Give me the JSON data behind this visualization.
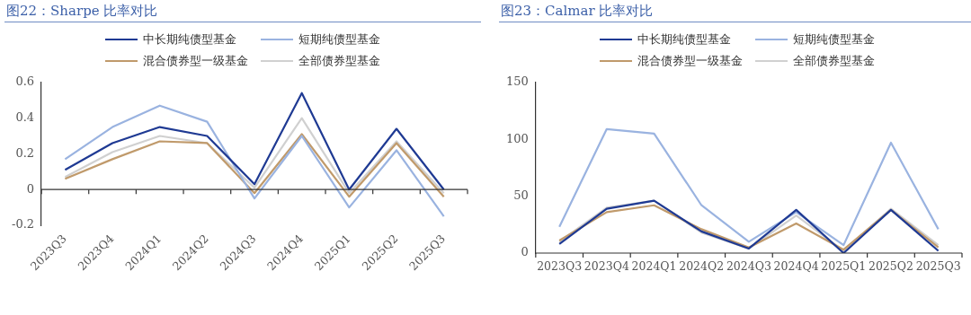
{
  "chart_data": [
    {
      "type": "line",
      "title": "图22：Sharpe 比率对比",
      "categories": [
        "2023Q3",
        "2023Q4",
        "2024Q1",
        "2024Q2",
        "2024Q3",
        "2024Q4",
        "2025Q1",
        "2025Q2",
        "2025Q3"
      ],
      "ylim": [
        -0.2,
        0.6
      ],
      "yticks": [
        {
          "value": -0.2,
          "label": "-0.2"
        },
        {
          "value": 0,
          "label": "0"
        },
        {
          "value": 0.2,
          "label": "0.2"
        },
        {
          "value": 0.4,
          "label": "0.4"
        },
        {
          "value": 0.6,
          "label": "0.6"
        }
      ],
      "grid": false,
      "ref_lines": [
        {
          "axis": "y",
          "value": 0,
          "color": "#333333"
        }
      ],
      "legend": "top",
      "marker": "none",
      "line_style": "solid",
      "series": [
        {
          "name": "中长期纯债型基金",
          "color": "#1f3a93",
          "values": [
            0.11,
            0.26,
            0.35,
            0.3,
            0.03,
            0.54,
            0.0,
            0.34,
            0.0
          ]
        },
        {
          "name": "短期纯债型基金",
          "color": "#9ab3e0",
          "values": [
            0.17,
            0.35,
            0.47,
            0.38,
            -0.05,
            0.3,
            -0.1,
            0.22,
            -0.15
          ]
        },
        {
          "name": "混合债券型一级基金",
          "color": "#c09a6b",
          "values": [
            0.06,
            0.17,
            0.27,
            0.26,
            -0.02,
            0.31,
            -0.04,
            0.26,
            -0.04
          ]
        },
        {
          "name": "全部债券型基金",
          "color": "#d0d0d0",
          "values": [
            0.07,
            0.21,
            0.3,
            0.26,
            0.01,
            0.4,
            -0.02,
            0.27,
            -0.02
          ]
        }
      ]
    },
    {
      "type": "line",
      "title": "图23：Calmar 比率对比",
      "categories": [
        "2023Q3",
        "2023Q4",
        "2024Q1",
        "2024Q2",
        "2024Q3",
        "2024Q4",
        "2025Q1",
        "2025Q2",
        "2025Q3"
      ],
      "ylim": [
        0,
        150
      ],
      "yticks": [
        0,
        50,
        100,
        150
      ],
      "grid": false,
      "legend": "top",
      "marker": "none",
      "line_style": "solid",
      "series": [
        {
          "name": "中长期纯债型基金",
          "color": "#1f3a93",
          "values": [
            8,
            39,
            46,
            19,
            4,
            38,
            0,
            38,
            2
          ]
        },
        {
          "name": "短期纯债型基金",
          "color": "#9ab3e0",
          "values": [
            23,
            109,
            105,
            42,
            10,
            36,
            7,
            97,
            21
          ]
        },
        {
          "name": "混合债券型一级基金",
          "color": "#c09a6b",
          "values": [
            11,
            36,
            42,
            21,
            5,
            26,
            3,
            38,
            5
          ]
        },
        {
          "name": "全部债券型基金",
          "color": "#d0d0d0",
          "values": [
            10,
            40,
            46,
            18,
            4,
            33,
            2,
            39,
            7
          ]
        }
      ]
    }
  ]
}
